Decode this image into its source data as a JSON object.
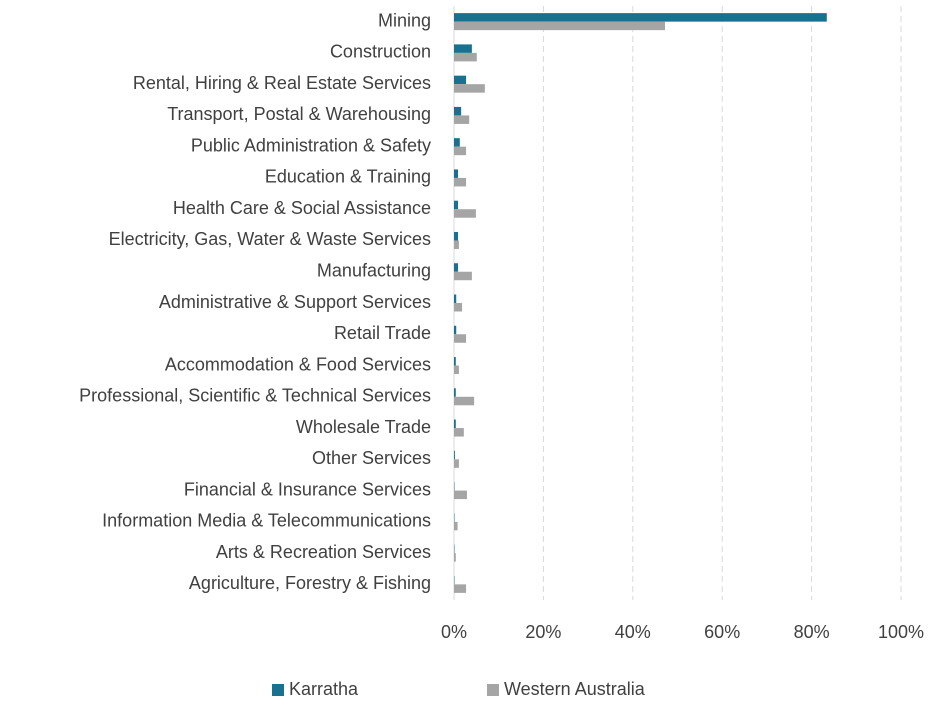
{
  "chart_data": {
    "type": "hbar",
    "categories": [
      "Mining",
      "Construction",
      "Rental, Hiring & Real Estate Services",
      "Transport, Postal & Warehousing",
      "Public Administration & Safety",
      "Education & Training",
      "Health Care & Social Assistance",
      "Electricity, Gas, Water & Waste Services",
      "Manufacturing",
      "Administrative & Support Services",
      "Retail Trade",
      "Accommodation & Food Services",
      "Professional, Scientific & Technical Services",
      "Wholesale Trade",
      "Other Services",
      "Financial & Insurance Services",
      "Information Media & Telecommunications",
      "Arts & Recreation Services",
      "Agriculture, Forestry & Fishing"
    ],
    "series": [
      {
        "name": "Karratha",
        "color": "#17718f",
        "values": [
          83.4,
          4.0,
          2.7,
          1.6,
          1.3,
          0.9,
          0.9,
          0.9,
          0.9,
          0.5,
          0.5,
          0.4,
          0.4,
          0.4,
          0.2,
          0.1,
          0.1,
          0.1,
          0.1
        ]
      },
      {
        "name": "Western Australia",
        "color": "#a5a5a5",
        "values": [
          47.2,
          5.1,
          6.9,
          3.4,
          2.7,
          2.7,
          4.9,
          1.1,
          4.0,
          1.8,
          2.7,
          1.1,
          4.5,
          2.2,
          1.1,
          2.9,
          0.8,
          0.4,
          2.7
        ]
      }
    ],
    "xlim": [
      0,
      100
    ],
    "xticks": [
      {
        "value": 0,
        "label": "0%"
      },
      {
        "value": 20,
        "label": "20%"
      },
      {
        "value": 40,
        "label": "40%"
      },
      {
        "value": 60,
        "label": "60%"
      },
      {
        "value": 80,
        "label": "80%"
      },
      {
        "value": 100,
        "label": "100%"
      }
    ],
    "grid": true,
    "legend": "bottom"
  }
}
